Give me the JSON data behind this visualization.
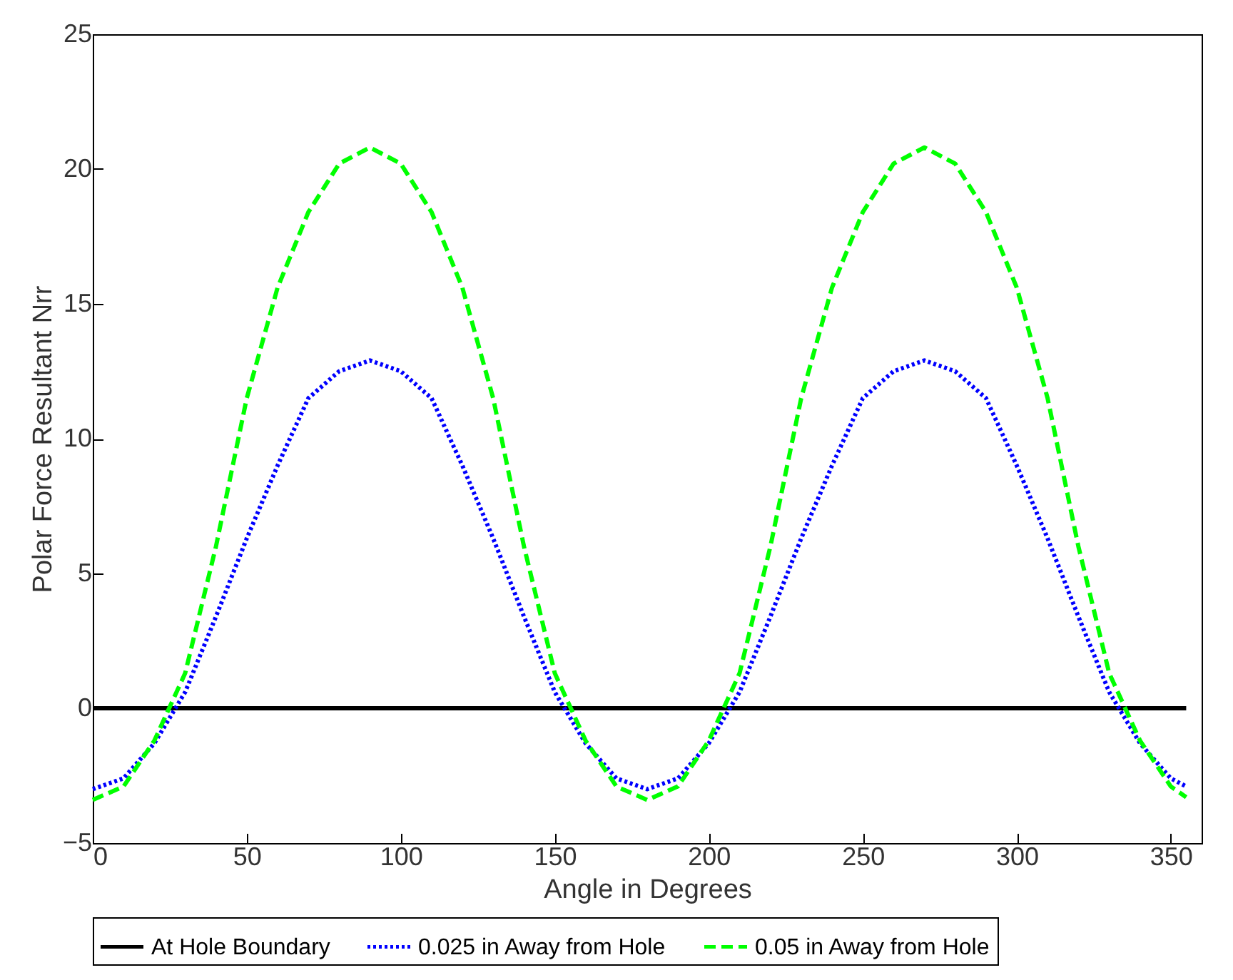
{
  "chart_data": {
    "type": "line",
    "xlabel": "Angle in Degrees",
    "ylabel": "Polar Force Resultant Nrr",
    "x": [
      0,
      10,
      20,
      30,
      40,
      50,
      60,
      70,
      80,
      90,
      100,
      110,
      120,
      130,
      140,
      150,
      160,
      170,
      180,
      190,
      200,
      210,
      220,
      230,
      240,
      250,
      260,
      270,
      280,
      290,
      300,
      310,
      320,
      330,
      340,
      350,
      355
    ],
    "series": [
      {
        "name": "At Hole Boundary",
        "color": "#000000",
        "line_style": "solid",
        "values": [
          0,
          0,
          0,
          0,
          0,
          0,
          0,
          0,
          0,
          0,
          0,
          0,
          0,
          0,
          0,
          0,
          0,
          0,
          0,
          0,
          0,
          0,
          0,
          0,
          0,
          0,
          0,
          0,
          0,
          0,
          0,
          0,
          0,
          0,
          0,
          0,
          0
        ]
      },
      {
        "name": "0.025 in Away from Hole",
        "color": "#0000ff",
        "line_style": "dotted",
        "values": [
          -3.0,
          -2.6,
          -1.3,
          0.6,
          3.4,
          6.3,
          9.0,
          11.5,
          12.5,
          12.9,
          12.5,
          11.5,
          9.0,
          6.3,
          3.4,
          0.6,
          -1.3,
          -2.6,
          -3.0,
          -2.6,
          -1.3,
          0.6,
          3.4,
          6.3,
          9.0,
          11.5,
          12.5,
          12.9,
          12.5,
          11.5,
          9.0,
          6.3,
          3.4,
          0.6,
          -1.3,
          -2.6,
          -2.9
        ]
      },
      {
        "name": "0.05 in Away from Hole",
        "color": "#00ff00",
        "line_style": "dashed",
        "values": [
          -3.4,
          -2.9,
          -1.2,
          1.3,
          6.0,
          11.5,
          15.6,
          18.4,
          20.2,
          20.8,
          20.2,
          18.4,
          15.6,
          11.5,
          6.0,
          1.3,
          -1.2,
          -2.9,
          -3.4,
          -2.9,
          -1.2,
          1.3,
          6.0,
          11.5,
          15.6,
          18.4,
          20.2,
          20.8,
          20.2,
          18.4,
          15.6,
          11.5,
          6.0,
          1.3,
          -1.2,
          -2.9,
          -3.3
        ]
      }
    ],
    "xlim": [
      0,
      360
    ],
    "xticks": [
      0,
      50,
      100,
      150,
      200,
      250,
      300,
      350
    ],
    "ylim": [
      -5,
      25
    ],
    "yticks": [
      -5,
      0,
      5,
      10,
      15,
      20,
      25
    ],
    "legend": "bottom"
  }
}
